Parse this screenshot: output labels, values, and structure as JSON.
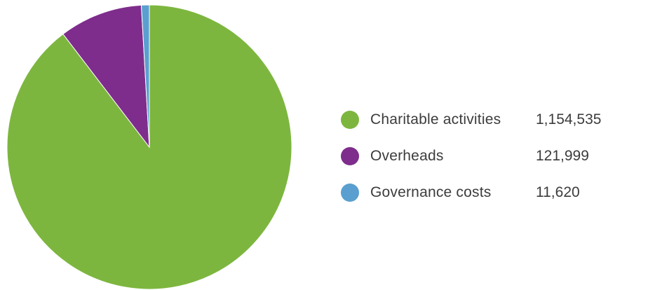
{
  "chart_data": {
    "type": "pie",
    "categories": [
      "Charitable activities",
      "Overheads",
      "Governance costs"
    ],
    "values": [
      1154535,
      121999,
      11620
    ],
    "value_labels": [
      "1,154,535",
      "121,999",
      "11,620"
    ],
    "colors": [
      "#7db63f",
      "#7e2d8c",
      "#5a9fcf"
    ],
    "start_angle": "12 o'clock",
    "direction": "clockwise",
    "legend_position": "right",
    "title": ""
  }
}
